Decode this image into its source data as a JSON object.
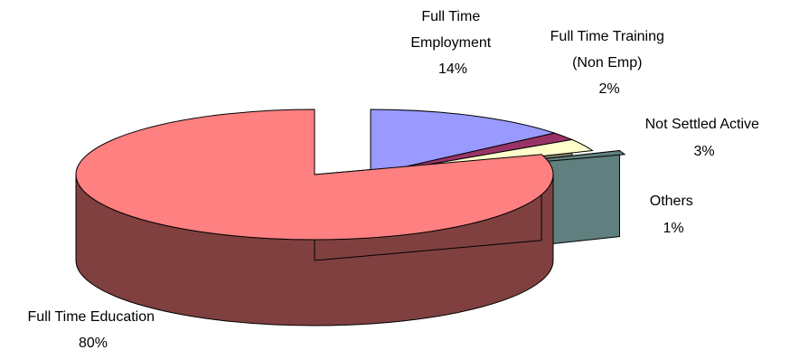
{
  "chart_data": {
    "type": "pie",
    "title": "",
    "style": "3d-exploded",
    "slices": [
      {
        "label": [
          "Full Time",
          "Employment"
        ],
        "value": 14,
        "value_label": "14%",
        "color": "#9999ff",
        "side_color": "#3a3a77"
      },
      {
        "label": [
          "Full Time Training",
          "(Non Emp)"
        ],
        "value": 2,
        "value_label": "2%",
        "color": "#993366",
        "side_color": "#4d1a33"
      },
      {
        "label": [
          "Not Settled Active"
        ],
        "value": 3,
        "value_label": "3%",
        "color": "#ffffcc",
        "side_color": "#7f7f66"
      },
      {
        "label": [
          "Others"
        ],
        "value": 1,
        "value_label": "1%",
        "color": "#60807f",
        "side_color": "#60807f"
      },
      {
        "label": [
          "Full Time Education"
        ],
        "value": 80,
        "value_label": "80%",
        "color": "#ff8080",
        "side_color": "#804040"
      }
    ],
    "legend": "none"
  }
}
